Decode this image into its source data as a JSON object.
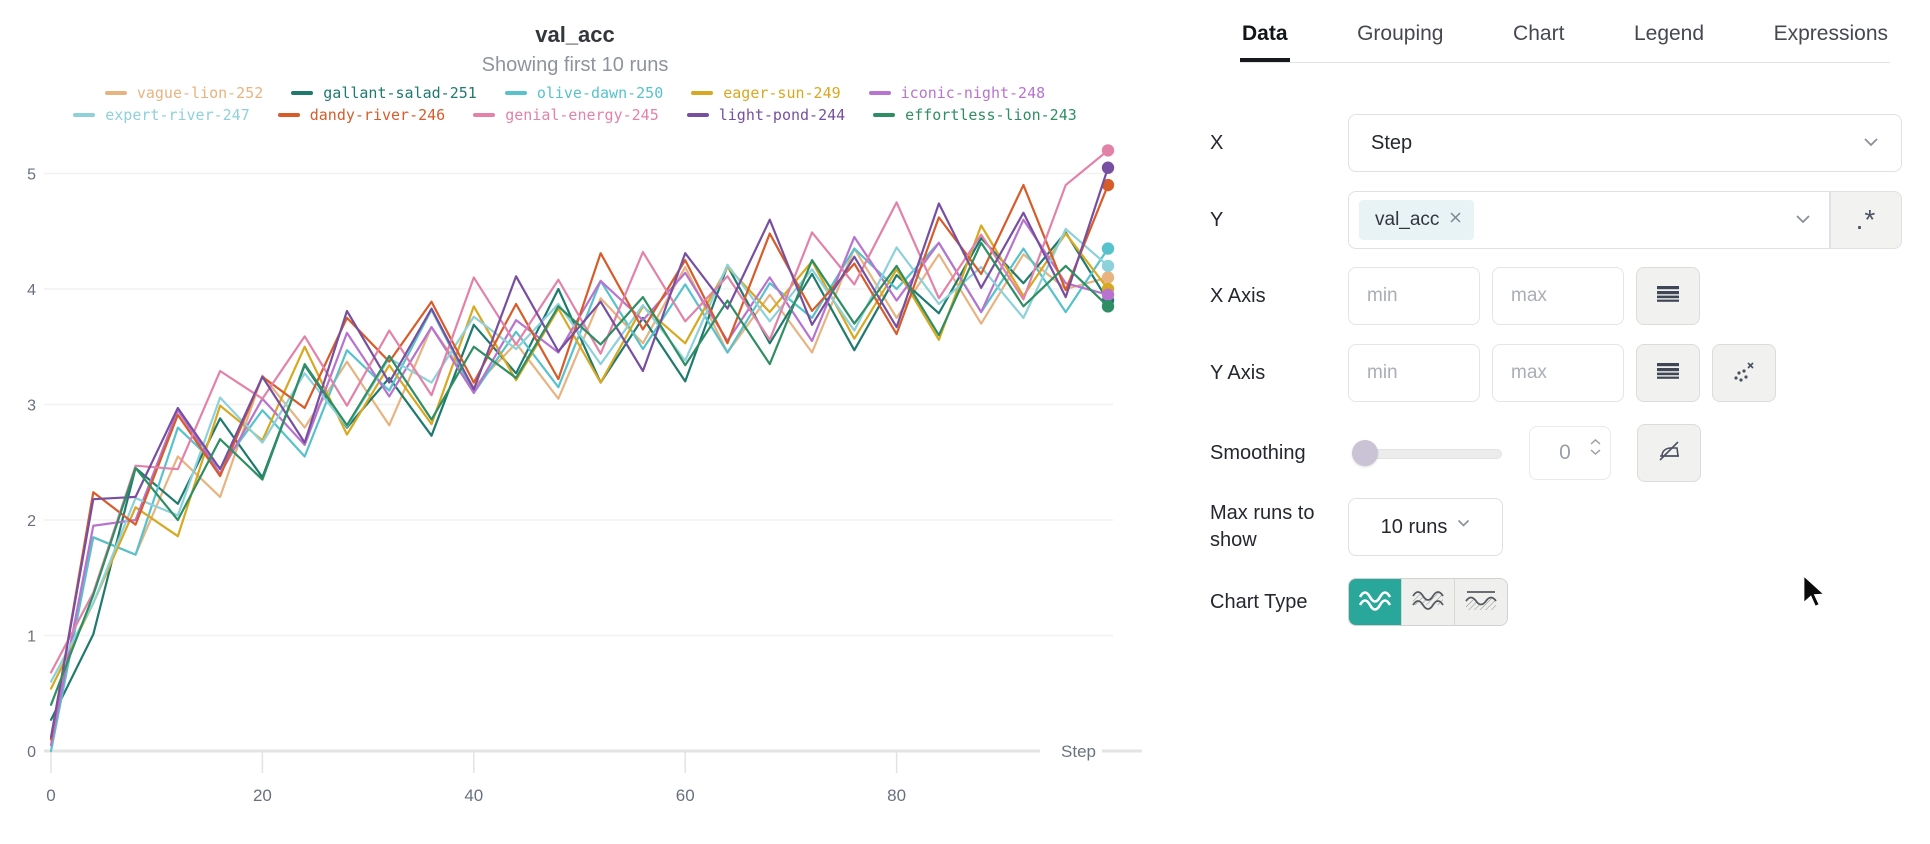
{
  "chart": {
    "title": "val_acc",
    "subtitle": "Showing first 10 runs"
  },
  "chart_data": {
    "type": "line",
    "title": "val_acc",
    "subtitle": "Showing first 10 runs",
    "xlabel": "Step",
    "ylabel": "",
    "xlim": [
      0,
      100
    ],
    "ylim": [
      0,
      5.45
    ],
    "x_ticks": [
      0,
      20,
      40,
      60,
      80
    ],
    "y_ticks": [
      0,
      1,
      2,
      3,
      4,
      5
    ],
    "grid": true,
    "legend_position": "top",
    "x": [
      0,
      4,
      8,
      12,
      16,
      20,
      24,
      28,
      32,
      36,
      40,
      44,
      48,
      52,
      56,
      60,
      64,
      68,
      72,
      76,
      80,
      84,
      88,
      92,
      96,
      100
    ],
    "series": [
      {
        "name": "vague-lion-252",
        "color": "#e7b481",
        "values": [
          0.1,
          1.85,
          1.7,
          2.55,
          2.2,
          3.25,
          2.8,
          3.37,
          2.82,
          3.67,
          3.15,
          3.53,
          3.05,
          3.92,
          3.53,
          4.19,
          3.45,
          3.95,
          3.45,
          4.35,
          3.75,
          4.3,
          3.7,
          4.3,
          4.0,
          4.1
        ]
      },
      {
        "name": "gallant-salad-251",
        "color": "#1e7a6f",
        "values": [
          0.27,
          1.01,
          2.45,
          2.14,
          2.88,
          2.37,
          3.34,
          2.8,
          3.23,
          2.73,
          3.69,
          3.27,
          4.0,
          3.19,
          3.75,
          3.2,
          4.2,
          3.53,
          4.13,
          3.47,
          4.12,
          3.79,
          4.44,
          4.05,
          4.49,
          3.9
        ]
      },
      {
        "name": "olive-dawn-250",
        "color": "#57c2cc",
        "values": [
          0.0,
          1.85,
          1.7,
          2.8,
          2.45,
          2.95,
          2.55,
          3.47,
          3.12,
          3.82,
          3.1,
          3.63,
          3.15,
          4.07,
          3.48,
          4.04,
          3.45,
          4.05,
          3.75,
          4.35,
          4.0,
          4.4,
          3.8,
          4.35,
          3.8,
          4.35
        ]
      },
      {
        "name": "eager-sun-249",
        "color": "#d8a820",
        "values": [
          0.54,
          1.28,
          2.11,
          1.86,
          2.99,
          2.69,
          3.5,
          2.74,
          3.34,
          2.83,
          3.85,
          3.21,
          3.83,
          3.19,
          3.85,
          3.53,
          4.19,
          3.8,
          4.24,
          3.57,
          4.17,
          3.56,
          4.55,
          3.94,
          4.48,
          4.0
        ]
      },
      {
        "name": "iconic-night-248",
        "color": "#b873cf",
        "values": [
          0.05,
          1.95,
          2.0,
          2.95,
          2.4,
          3.05,
          2.65,
          3.62,
          3.07,
          3.67,
          3.1,
          3.73,
          3.45,
          4.07,
          3.73,
          4.14,
          3.55,
          4.1,
          3.55,
          4.45,
          3.9,
          4.4,
          3.8,
          4.6,
          4.05,
          3.95
        ]
      },
      {
        "name": "expert-river-247",
        "color": "#8ed1da",
        "values": [
          0.6,
          1.28,
          2.19,
          2.04,
          3.06,
          2.67,
          3.27,
          2.81,
          3.4,
          3.19,
          3.76,
          3.48,
          3.87,
          3.35,
          3.86,
          3.38,
          4.21,
          3.72,
          4.17,
          3.64,
          4.36,
          3.87,
          4.19,
          3.75,
          4.52,
          4.2
        ]
      },
      {
        "name": "dandy-river-246",
        "color": "#d85b2a",
        "values": [
          0.1,
          2.24,
          1.96,
          2.91,
          2.38,
          3.24,
          2.97,
          3.75,
          3.37,
          3.89,
          3.19,
          3.87,
          3.22,
          4.31,
          3.65,
          4.25,
          3.53,
          4.48,
          3.81,
          4.22,
          3.61,
          4.62,
          4.13,
          4.9,
          3.99,
          4.9
        ]
      },
      {
        "name": "genial-energy-245",
        "color": "#e382a8",
        "values": [
          0.68,
          1.37,
          2.47,
          2.44,
          3.29,
          3.05,
          3.59,
          2.99,
          3.64,
          3.08,
          4.1,
          3.52,
          4.08,
          3.44,
          4.32,
          3.72,
          4.11,
          3.56,
          4.49,
          4.04,
          4.75,
          3.92,
          4.47,
          3.91,
          4.9,
          5.2
        ]
      },
      {
        "name": "light-pond-244",
        "color": "#774fa0",
        "values": [
          0.12,
          2.18,
          2.2,
          2.97,
          2.44,
          3.24,
          2.67,
          3.81,
          3.19,
          3.83,
          3.13,
          4.11,
          3.46,
          3.89,
          3.29,
          4.31,
          3.83,
          4.6,
          3.69,
          4.28,
          3.67,
          4.74,
          4.01,
          4.66,
          3.93,
          5.05
        ]
      },
      {
        "name": "effortless-lion-243",
        "color": "#2f8e63",
        "values": [
          0.4,
          1.35,
          2.45,
          2.0,
          2.7,
          2.35,
          3.35,
          2.82,
          3.42,
          2.87,
          3.5,
          3.23,
          3.85,
          3.52,
          3.93,
          3.34,
          3.9,
          3.35,
          4.25,
          3.7,
          4.2,
          3.6,
          4.4,
          3.85,
          4.2,
          3.85
        ]
      }
    ]
  },
  "panel": {
    "tabs": [
      {
        "label": "Data",
        "active": true
      },
      {
        "label": "Grouping",
        "active": false
      },
      {
        "label": "Chart",
        "active": false
      },
      {
        "label": "Legend",
        "active": false
      },
      {
        "label": "Expressions",
        "active": false
      }
    ],
    "x": {
      "label": "X",
      "value": "Step"
    },
    "y": {
      "label": "Y",
      "tag": "val_acc",
      "regex_label": ".*"
    },
    "x_axis": {
      "label": "X Axis",
      "min_placeholder": "min",
      "max_placeholder": "max"
    },
    "y_axis": {
      "label": "Y Axis",
      "min_placeholder": "min",
      "max_placeholder": "max"
    },
    "smoothing": {
      "label": "Smoothing",
      "value": "0"
    },
    "max_runs": {
      "label": "Max runs to show",
      "value": "10 runs"
    },
    "chart_type": {
      "label": "Chart Type"
    }
  },
  "colors": {
    "accent_teal": "#2aa79b",
    "tag_bg": "#e8f3f6",
    "grid": "#f1f1f1",
    "axis": "#e3e3e3",
    "tick_text": "#697080"
  }
}
